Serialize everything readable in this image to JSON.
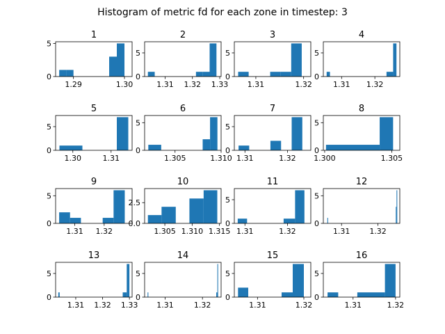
{
  "figure": {
    "title": "Histogram of metric fd for each zone in timestep: 3",
    "bar_color": "#1f77b4"
  },
  "chart_data": [
    {
      "type": "bar",
      "title": "1",
      "xlim": [
        1.2865,
        1.3015
      ],
      "ylim": [
        0,
        5.25
      ],
      "xticks": [
        {
          "v": 1.29,
          "label": "1.29"
        },
        {
          "v": 1.3,
          "label": "1.30"
        }
      ],
      "yticks": [
        {
          "v": 0,
          "label": "0"
        },
        {
          "v": 5,
          "label": "5"
        }
      ],
      "bins": [
        [
          1.2872,
          1.2886,
          1
        ],
        [
          1.2886,
          1.29,
          1
        ],
        [
          1.297,
          1.2985,
          3
        ],
        [
          1.2985,
          1.3,
          5
        ]
      ]
    },
    {
      "type": "bar",
      "title": "2",
      "xlim": [
        1.3025,
        1.3305
      ],
      "ylim": [
        0,
        7.35
      ],
      "xticks": [
        {
          "v": 1.31,
          "label": "1.31"
        },
        {
          "v": 1.32,
          "label": "1.32"
        },
        {
          "v": 1.33,
          "label": "1.33"
        }
      ],
      "yticks": [
        {
          "v": 0,
          "label": "0"
        },
        {
          "v": 5,
          "label": "5"
        }
      ],
      "bins": [
        [
          1.3037,
          1.3062,
          1
        ],
        [
          1.3213,
          1.3238,
          1
        ],
        [
          1.3238,
          1.3263,
          1
        ],
        [
          1.3263,
          1.3288,
          7
        ]
      ]
    },
    {
      "type": "bar",
      "title": "3",
      "xlim": [
        1.3055,
        1.3215
      ],
      "ylim": [
        0,
        7.35
      ],
      "xticks": [
        {
          "v": 1.31,
          "label": "1.31"
        },
        {
          "v": 1.32,
          "label": "1.32"
        }
      ],
      "yticks": [
        {
          "v": 0,
          "label": "0"
        },
        {
          "v": 5,
          "label": "5"
        }
      ],
      "bins": [
        [
          1.3063,
          1.3085,
          1
        ],
        [
          1.313,
          1.3152,
          1
        ],
        [
          1.3152,
          1.3174,
          1
        ],
        [
          1.3174,
          1.3196,
          7
        ]
      ]
    },
    {
      "type": "bar",
      "title": "4",
      "xlim": [
        1.3045,
        1.3275
      ],
      "ylim": [
        0,
        7.35
      ],
      "xticks": [
        {
          "v": 1.31,
          "label": "1.31"
        },
        {
          "v": 1.32,
          "label": "1.32"
        }
      ],
      "yticks": [
        {
          "v": 0,
          "label": "0"
        },
        {
          "v": 5,
          "label": "5"
        }
      ],
      "bins": [
        [
          1.3055,
          1.3065,
          1
        ],
        [
          1.3235,
          1.3255,
          1
        ],
        [
          1.3255,
          1.3265,
          7
        ]
      ]
    },
    {
      "type": "bar",
      "title": "5",
      "xlim": [
        1.2955,
        1.3155
      ],
      "ylim": [
        0,
        7.35
      ],
      "xticks": [
        {
          "v": 1.3,
          "label": "1.30"
        },
        {
          "v": 1.31,
          "label": "1.31"
        }
      ],
      "yticks": [
        {
          "v": 0,
          "label": "0"
        },
        {
          "v": 5,
          "label": "5"
        }
      ],
      "bins": [
        [
          1.2965,
          1.2995,
          1
        ],
        [
          1.2995,
          1.3025,
          1
        ],
        [
          1.3115,
          1.3145,
          7
        ]
      ]
    },
    {
      "type": "bar",
      "title": "6",
      "xlim": [
        1.3017,
        1.31
      ],
      "ylim": [
        0,
        6.3
      ],
      "xticks": [
        {
          "v": 1.305,
          "label": "1.305"
        },
        {
          "v": 1.31,
          "label": "1.310"
        }
      ],
      "yticks": [
        {
          "v": 0,
          "label": "0"
        },
        {
          "v": 5,
          "label": "5"
        }
      ],
      "bins": [
        [
          1.3021,
          1.3035,
          1
        ],
        [
          1.308,
          1.3088,
          2
        ],
        [
          1.3088,
          1.3096,
          6
        ]
      ]
    },
    {
      "type": "bar",
      "title": "7",
      "xlim": [
        1.3075,
        1.3255
      ],
      "ylim": [
        0,
        7.35
      ],
      "xticks": [
        {
          "v": 1.31,
          "label": "1.31"
        },
        {
          "v": 1.32,
          "label": "1.32"
        }
      ],
      "yticks": [
        {
          "v": 0,
          "label": "0"
        },
        {
          "v": 5,
          "label": "5"
        }
      ],
      "bins": [
        [
          1.3085,
          1.311,
          1
        ],
        [
          1.316,
          1.3185,
          2
        ],
        [
          1.321,
          1.3235,
          7
        ]
      ]
    },
    {
      "type": "bar",
      "title": "8",
      "xlim": [
        1.2999,
        1.3056
      ],
      "ylim": [
        0,
        6.3
      ],
      "xticks": [
        {
          "v": 1.3,
          "label": "1.300"
        },
        {
          "v": 1.305,
          "label": "1.305"
        }
      ],
      "yticks": [
        {
          "v": 0,
          "label": "0"
        },
        {
          "v": 5,
          "label": "5"
        }
      ],
      "bins": [
        [
          1.3001,
          1.3041,
          1
        ],
        [
          1.3041,
          1.3051,
          6
        ]
      ]
    },
    {
      "type": "bar",
      "title": "9",
      "xlim": [
        1.3035,
        1.3295
      ],
      "ylim": [
        0,
        6.3
      ],
      "xticks": [
        {
          "v": 1.31,
          "label": "1.31"
        },
        {
          "v": 1.32,
          "label": "1.32"
        }
      ],
      "yticks": [
        {
          "v": 0,
          "label": "0"
        },
        {
          "v": 5,
          "label": "5"
        }
      ],
      "bins": [
        [
          1.3047,
          1.3084,
          2
        ],
        [
          1.3084,
          1.3121,
          1
        ],
        [
          1.3195,
          1.3232,
          1
        ],
        [
          1.3232,
          1.327,
          6
        ]
      ]
    },
    {
      "type": "bar",
      "title": "10",
      "xlim": [
        1.3013,
        1.3153
      ],
      "ylim": [
        0,
        4.2
      ],
      "xticks": [
        {
          "v": 1.305,
          "label": "1.305"
        },
        {
          "v": 1.31,
          "label": "1.310"
        },
        {
          "v": 1.315,
          "label": "1.315"
        }
      ],
      "yticks": [
        {
          "v": 0,
          "label": "0.0"
        },
        {
          "v": 2.5,
          "label": "2.5"
        }
      ],
      "bins": [
        [
          1.3019,
          1.3044,
          1
        ],
        [
          1.3044,
          1.307,
          2
        ],
        [
          1.3095,
          1.3121,
          3
        ],
        [
          1.3121,
          1.3146,
          4
        ]
      ]
    },
    {
      "type": "bar",
      "title": "11",
      "xlim": [
        1.3075,
        1.3255
      ],
      "ylim": [
        0,
        7.35
      ],
      "xticks": [
        {
          "v": 1.31,
          "label": "1.31"
        },
        {
          "v": 1.32,
          "label": "1.32"
        }
      ],
      "yticks": [
        {
          "v": 0,
          "label": "0"
        },
        {
          "v": 5,
          "label": "5"
        }
      ],
      "bins": [
        [
          1.3083,
          1.3105,
          1
        ],
        [
          1.3191,
          1.3218,
          1
        ],
        [
          1.3218,
          1.324,
          7
        ]
      ]
    },
    {
      "type": "bar",
      "title": "12",
      "xlim": [
        1.305,
        1.326
      ],
      "ylim": [
        0,
        6.3
      ],
      "xticks": [
        {
          "v": 1.31,
          "label": "1.31"
        },
        {
          "v": 1.32,
          "label": "1.32"
        }
      ],
      "yticks": [
        {
          "v": 0,
          "label": "0"
        },
        {
          "v": 5,
          "label": "5"
        }
      ],
      "bins": [
        [
          1.3061,
          1.3063,
          1
        ],
        [
          1.3249,
          1.3251,
          3
        ],
        [
          1.3251,
          1.3253,
          6
        ]
      ]
    },
    {
      "type": "bar",
      "title": "13",
      "xlim": [
        1.3025,
        1.331
      ],
      "ylim": [
        0,
        7.35
      ],
      "xticks": [
        {
          "v": 1.31,
          "label": "1.31"
        },
        {
          "v": 1.32,
          "label": "1.32"
        },
        {
          "v": 1.33,
          "label": "1.33"
        }
      ],
      "yticks": [
        {
          "v": 0,
          "label": "0"
        },
        {
          "v": 5,
          "label": "5"
        }
      ],
      "bins": [
        [
          1.3035,
          1.304,
          1
        ],
        [
          1.3275,
          1.329,
          1
        ],
        [
          1.329,
          1.33,
          7
        ]
      ]
    },
    {
      "type": "bar",
      "title": "14",
      "xlim": [
        1.3045,
        1.325
      ],
      "ylim": [
        0,
        7.35
      ],
      "xticks": [
        {
          "v": 1.31,
          "label": "1.31"
        },
        {
          "v": 1.32,
          "label": "1.32"
        }
      ],
      "yticks": [
        {
          "v": 0,
          "label": "0"
        },
        {
          "v": 5,
          "label": "5"
        }
      ],
      "bins": [
        [
          1.3053,
          1.3055,
          1
        ],
        [
          1.3237,
          1.324,
          1
        ],
        [
          1.324,
          1.3242,
          7
        ]
      ]
    },
    {
      "type": "bar",
      "title": "15",
      "xlim": [
        1.305,
        1.3215
      ],
      "ylim": [
        0,
        7.35
      ],
      "xticks": [
        {
          "v": 1.31,
          "label": "1.31"
        },
        {
          "v": 1.32,
          "label": "1.32"
        }
      ],
      "yticks": [
        {
          "v": 0,
          "label": "0"
        },
        {
          "v": 5,
          "label": "5"
        }
      ],
      "bins": [
        [
          1.3058,
          1.308,
          2
        ],
        [
          1.3152,
          1.3176,
          1
        ],
        [
          1.3176,
          1.32,
          7
        ]
      ]
    },
    {
      "type": "bar",
      "title": "16",
      "xlim": [
        1.303,
        1.321
      ],
      "ylim": [
        0,
        7.35
      ],
      "xticks": [
        {
          "v": 1.31,
          "label": "1.31"
        },
        {
          "v": 1.32,
          "label": "1.32"
        }
      ],
      "yticks": [
        {
          "v": 0,
          "label": "0"
        },
        {
          "v": 5,
          "label": "5"
        }
      ],
      "bins": [
        [
          1.304,
          1.3065,
          1
        ],
        [
          1.311,
          1.3175,
          1
        ],
        [
          1.3175,
          1.32,
          7
        ]
      ]
    }
  ]
}
